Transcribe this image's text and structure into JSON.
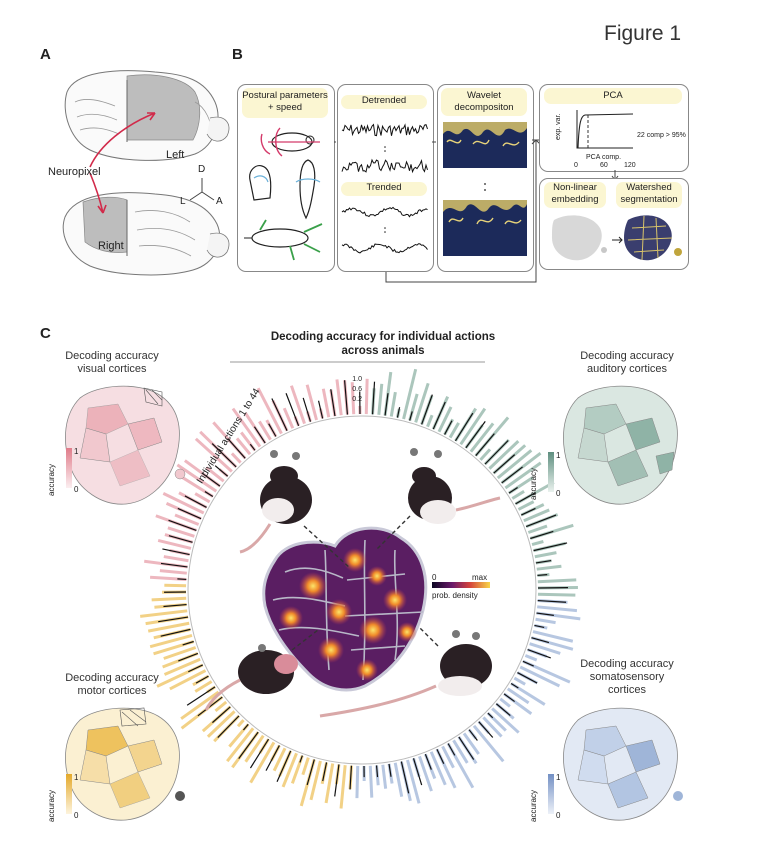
{
  "figure_title": "Figure 1",
  "panels": {
    "a": "A",
    "b": "B",
    "c": "C"
  },
  "panel_a": {
    "left_label": "Left",
    "right_label": "Right",
    "probe_label": "Neuropixel",
    "axis": {
      "d": "D",
      "l": "L",
      "a": "A"
    }
  },
  "panel_b": {
    "postural": "Postural parameters + speed",
    "detrended": "Detrended",
    "trended": "Trended",
    "wavelet": "Wavelet decompositon",
    "pca": "PCA",
    "pca_ylabel": "exp. var.",
    "pca_xlabel": "PCA comp.",
    "pca_ticks": [
      "0",
      "60",
      "120"
    ],
    "pca_note": "22 comp > 95%",
    "nonlinear": "Non-linear embedding",
    "watershed": "Watershed segmentation"
  },
  "panel_c": {
    "title_line1": "Decoding accuracy for individual actions",
    "title_line2": "across animals",
    "ring_label": "Individual actions 1 to 44",
    "scale_ticks": [
      "1.0",
      "0.6",
      "0.2"
    ],
    "density_min": "0",
    "density_max": "max",
    "density_label": "prob. density",
    "colorbar_label": "accuracy",
    "colorbar_max": "1",
    "colorbar_min": "0",
    "corners": {
      "visual": {
        "line1": "Decoding accuracy",
        "line2": "visual cortices"
      },
      "auditory": {
        "line1": "Decoding accuracy",
        "line2": "auditory cortices"
      },
      "motor": {
        "line1": "Decoding accuracy",
        "line2": "motor cortices"
      },
      "somato": {
        "line1": "Decoding accuracy",
        "line2": "somatosensory",
        "line3": "cortices"
      }
    },
    "colors": {
      "visual": "#e8a0aa",
      "auditory": "#8fb3a6",
      "motor": "#eec25e",
      "somatosensory": "#9fb5d8"
    }
  }
}
